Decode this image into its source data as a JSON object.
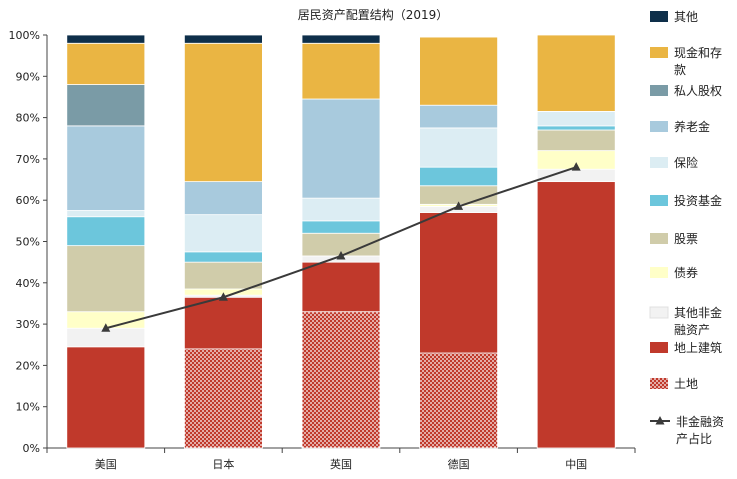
{
  "chart_data": {
    "type": "bar",
    "stacked": true,
    "title": "居民资产配置结构（2019）",
    "categories": [
      "美国",
      "日本",
      "英国",
      "德国",
      "中国"
    ],
    "ylim": [
      0,
      100
    ],
    "y_ticks": [
      "0%",
      "10%",
      "20%",
      "30%",
      "40%",
      "50%",
      "60%",
      "70%",
      "80%",
      "90%",
      "100%"
    ],
    "legend_position": "right",
    "series": [
      {
        "name": "土地",
        "color": "#c0392b",
        "pattern": "dots",
        "values": [
          0,
          24,
          33,
          23,
          0
        ]
      },
      {
        "name": "地上建筑",
        "color": "#c0392b",
        "values": [
          24.5,
          12.5,
          12,
          34,
          64.5
        ]
      },
      {
        "name": "其他非金融资产",
        "color": "#f2f2f2",
        "values": [
          4.5,
          0.5,
          1.5,
          1.5,
          3
        ]
      },
      {
        "name": "债券",
        "color": "#ffffc8",
        "values": [
          4,
          1.5,
          0,
          0.5,
          4.5
        ]
      },
      {
        "name": "股票",
        "color": "#d0ccaa",
        "values": [
          16,
          6.5,
          5.5,
          4.5,
          5
        ]
      },
      {
        "name": "投资基金",
        "color": "#6cc6dc",
        "values": [
          7,
          2.5,
          3,
          4.5,
          1
        ]
      },
      {
        "name": "保险",
        "color": "#dcedf3",
        "values": [
          1.5,
          9,
          5.5,
          9.5,
          3.5
        ]
      },
      {
        "name": "养老金",
        "color": "#a8cadd",
        "values": [
          20.5,
          8,
          24,
          5.5,
          0
        ]
      },
      {
        "name": "私人股权",
        "color": "#7a9ba6",
        "values": [
          10,
          0,
          0,
          0,
          0
        ]
      },
      {
        "name": "现金和存款",
        "color": "#eab543",
        "values": [
          10,
          33.5,
          13.5,
          16.5,
          18.5
        ]
      },
      {
        "name": "其他",
        "color": "#0e2f4a",
        "values": [
          2,
          2,
          2,
          0,
          0
        ]
      }
    ],
    "line": {
      "name": "非金融资产占比",
      "color": "#3a3a3a",
      "values": [
        29,
        36.5,
        46.5,
        58.5,
        68
      ]
    }
  }
}
